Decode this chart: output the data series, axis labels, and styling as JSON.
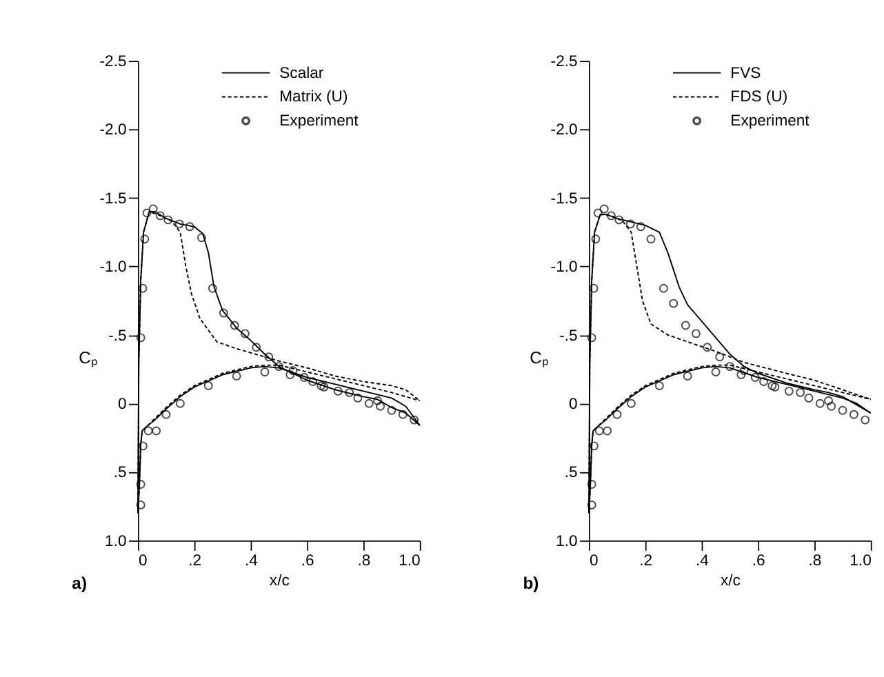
{
  "chart_data": [
    {
      "type": "line",
      "xlabel": "x/c",
      "ylabel": "Cₚ",
      "annotations": [
        "a)"
      ],
      "legend": "top right",
      "grid": false,
      "xlim": [
        0,
        1.0
      ],
      "xticks": [
        0,
        {
          "value": 0.2,
          "label": ".2"
        },
        {
          "value": 0.4,
          "label": ".4"
        },
        {
          "value": 0.6,
          "label": ".6"
        },
        {
          "value": 0.8,
          "label": ".8"
        },
        {
          "value": 1.0,
          "label": "1.0"
        }
      ],
      "ylim": [
        1.0,
        -2.5
      ],
      "yticks": [
        {
          "value": -2.5,
          "label": "-2.5"
        },
        {
          "value": -2.0,
          "label": "-2.0"
        },
        {
          "value": -1.5,
          "label": "-1.5"
        },
        {
          "value": -1.0,
          "label": "-1.0"
        },
        {
          "value": -0.5,
          "label": "-.5"
        },
        0,
        {
          "value": 0.5,
          "label": ".5"
        },
        {
          "value": 1.0,
          "label": "1.0"
        }
      ],
      "series": [
        {
          "name": "Scalar",
          "line_style": "solid",
          "color": "#000000",
          "x": [
            0,
            0.003,
            0.01,
            0.02,
            0.04,
            0.06,
            0.1,
            0.15,
            0.2,
            0.23,
            0.25,
            0.27,
            0.3,
            0.35,
            0.4,
            0.45,
            0.5,
            0.55,
            0.6,
            0.7,
            0.8,
            0.85,
            0.9,
            0.95,
            1.0
          ],
          "values": [
            0.8,
            -0.3,
            -0.9,
            -1.25,
            -1.4,
            -1.4,
            -1.35,
            -1.31,
            -1.29,
            -1.24,
            -1.1,
            -0.85,
            -0.68,
            -0.55,
            -0.46,
            -0.36,
            -0.27,
            -0.22,
            -0.17,
            -0.1,
            -0.05,
            -0.03,
            0.03,
            0.07,
            0.16
          ]
        },
        {
          "line_style": "solid",
          "color": "#000000",
          "x": [
            0,
            0.005,
            0.01,
            0.015,
            0.03,
            0.06,
            0.1,
            0.15,
            0.2,
            0.3,
            0.4,
            0.45,
            0.5,
            0.6,
            0.7,
            0.8,
            0.9,
            0.95,
            1.0
          ],
          "values": [
            0.8,
            0.6,
            0.3,
            0.2,
            0.17,
            0.12,
            0.04,
            -0.05,
            -0.12,
            -0.21,
            -0.26,
            -0.27,
            -0.26,
            -0.19,
            -0.14,
            -0.09,
            -0.04,
            0.02,
            0.16
          ]
        },
        {
          "name": "Matrix (U)",
          "line_style": "dashed",
          "color": "#000000",
          "x": [
            0,
            0.003,
            0.01,
            0.02,
            0.04,
            0.08,
            0.12,
            0.15,
            0.17,
            0.19,
            0.22,
            0.28,
            0.35,
            0.45,
            0.5,
            0.6,
            0.7,
            0.8,
            0.9,
            0.95,
            1.0
          ],
          "values": [
            0.8,
            -0.3,
            -0.9,
            -1.25,
            -1.4,
            -1.37,
            -1.33,
            -1.25,
            -1.0,
            -0.8,
            -0.62,
            -0.45,
            -0.4,
            -0.34,
            -0.31,
            -0.26,
            -0.2,
            -0.16,
            -0.13,
            -0.1,
            -0.02
          ]
        },
        {
          "line_style": "dashed",
          "color": "#000000",
          "x": [
            0,
            0.005,
            0.01,
            0.015,
            0.03,
            0.06,
            0.1,
            0.15,
            0.2,
            0.3,
            0.4,
            0.45,
            0.5,
            0.6,
            0.7,
            0.8,
            0.9,
            0.95,
            1.0
          ],
          "values": [
            0.8,
            0.6,
            0.3,
            0.2,
            0.17,
            0.11,
            0.03,
            -0.06,
            -0.13,
            -0.22,
            -0.27,
            -0.28,
            -0.28,
            -0.23,
            -0.18,
            -0.13,
            -0.08,
            -0.05,
            -0.02
          ]
        },
        {
          "name": "Experiment",
          "type": "scatter",
          "marker": "circle",
          "color": "#000000",
          "x": [
            0.01,
            0.01,
            0.018,
            0.037,
            0.065,
            0.1,
            0.15,
            0.25,
            0.35,
            0.45,
            0.01,
            0.017,
            0.024,
            0.032,
            0.054,
            0.079,
            0.107,
            0.147,
            0.184,
            0.226,
            0.265,
            0.304,
            0.343,
            0.38,
            0.42,
            0.464,
            0.5,
            0.54,
            0.55,
            0.59,
            0.62,
            0.65,
            0.66,
            0.71,
            0.75,
            0.78,
            0.82,
            0.85,
            0.86,
            0.9,
            0.94,
            0.98
          ],
          "values": [
            0.74,
            0.59,
            0.31,
            0.2,
            0.2,
            0.08,
            0.0,
            -0.13,
            -0.2,
            -0.23,
            -0.48,
            -0.84,
            -1.2,
            -1.39,
            -1.42,
            -1.37,
            -1.34,
            -1.31,
            -1.29,
            -1.21,
            -0.84,
            -0.66,
            -0.57,
            -0.51,
            -0.41,
            -0.34,
            -0.27,
            -0.21,
            -0.24,
            -0.19,
            -0.16,
            -0.13,
            -0.12,
            -0.09,
            -0.08,
            -0.04,
            0.0,
            -0.02,
            0.02,
            0.05,
            0.08,
            0.12
          ]
        }
      ]
    },
    {
      "type": "line",
      "xlabel": "x/c",
      "ylabel": "Cₚ",
      "annotations": [
        "b)"
      ],
      "legend": "top right",
      "grid": false,
      "xlim": [
        0,
        1.0
      ],
      "xticks": [
        0,
        {
          "value": 0.2,
          "label": ".2"
        },
        {
          "value": 0.4,
          "label": ".4"
        },
        {
          "value": 0.6,
          "label": ".6"
        },
        {
          "value": 0.8,
          "label": ".8"
        },
        {
          "value": 1.0,
          "label": "1.0"
        }
      ],
      "ylim": [
        1.0,
        -2.5
      ],
      "yticks": [
        {
          "value": -2.5,
          "label": "-2.5"
        },
        {
          "value": -2.0,
          "label": "-2.0"
        },
        {
          "value": -1.5,
          "label": "-1.5"
        },
        {
          "value": -1.0,
          "label": "-1.0"
        },
        {
          "value": -0.5,
          "label": "-.5"
        },
        0,
        {
          "value": 0.5,
          "label": ".5"
        },
        {
          "value": 1.0,
          "label": "1.0"
        }
      ],
      "series": [
        {
          "name": "FVS",
          "line_style": "solid",
          "color": "#000000",
          "x": [
            0,
            0.003,
            0.01,
            0.02,
            0.04,
            0.06,
            0.1,
            0.2,
            0.25,
            0.28,
            0.32,
            0.35,
            0.4,
            0.45,
            0.5,
            0.55,
            0.6,
            0.7,
            0.8,
            0.85,
            0.9,
            1.0
          ],
          "values": [
            0.8,
            -0.3,
            -0.9,
            -1.25,
            -1.38,
            -1.38,
            -1.35,
            -1.3,
            -1.25,
            -1.1,
            -0.85,
            -0.72,
            -0.6,
            -0.48,
            -0.36,
            -0.27,
            -0.22,
            -0.15,
            -0.1,
            -0.08,
            -0.05,
            0.07
          ]
        },
        {
          "line_style": "solid",
          "color": "#000000",
          "x": [
            0,
            0.005,
            0.01,
            0.015,
            0.03,
            0.06,
            0.1,
            0.15,
            0.2,
            0.3,
            0.4,
            0.45,
            0.5,
            0.6,
            0.7,
            0.8,
            0.9,
            0.95,
            1.0
          ],
          "values": [
            0.8,
            0.6,
            0.3,
            0.2,
            0.17,
            0.12,
            0.04,
            -0.05,
            -0.12,
            -0.21,
            -0.26,
            -0.27,
            -0.26,
            -0.19,
            -0.14,
            -0.09,
            -0.04,
            0.0,
            0.07
          ]
        },
        {
          "name": "FDS (U)",
          "line_style": "dashed",
          "color": "#000000",
          "x": [
            0,
            0.003,
            0.01,
            0.02,
            0.04,
            0.08,
            0.12,
            0.15,
            0.17,
            0.19,
            0.22,
            0.28,
            0.35,
            0.45,
            0.55,
            0.7,
            0.8,
            0.9,
            1.0
          ],
          "values": [
            0.8,
            -0.3,
            -0.9,
            -1.25,
            -1.38,
            -1.37,
            -1.33,
            -1.25,
            -1.0,
            -0.75,
            -0.58,
            -0.5,
            -0.45,
            -0.38,
            -0.3,
            -0.22,
            -0.17,
            -0.1,
            -0.03
          ]
        },
        {
          "line_style": "dashed",
          "color": "#000000",
          "x": [
            0,
            0.005,
            0.01,
            0.015,
            0.03,
            0.06,
            0.1,
            0.15,
            0.2,
            0.3,
            0.4,
            0.45,
            0.5,
            0.6,
            0.7,
            0.8,
            0.9,
            1.0
          ],
          "values": [
            0.8,
            0.6,
            0.3,
            0.2,
            0.17,
            0.11,
            0.03,
            -0.06,
            -0.13,
            -0.22,
            -0.27,
            -0.28,
            -0.28,
            -0.23,
            -0.18,
            -0.13,
            -0.08,
            -0.03
          ]
        },
        {
          "name": "Experiment",
          "type": "scatter",
          "marker": "circle",
          "color": "#000000",
          "x": [
            0.01,
            0.01,
            0.018,
            0.037,
            0.065,
            0.1,
            0.15,
            0.25,
            0.35,
            0.45,
            0.01,
            0.017,
            0.024,
            0.032,
            0.054,
            0.079,
            0.107,
            0.147,
            0.184,
            0.22,
            0.265,
            0.3,
            0.343,
            0.38,
            0.42,
            0.464,
            0.5,
            0.54,
            0.55,
            0.59,
            0.62,
            0.65,
            0.66,
            0.71,
            0.75,
            0.78,
            0.82,
            0.85,
            0.86,
            0.9,
            0.94,
            0.98
          ],
          "values": [
            0.74,
            0.59,
            0.31,
            0.2,
            0.2,
            0.08,
            0.0,
            -0.13,
            -0.2,
            -0.23,
            -0.48,
            -0.84,
            -1.2,
            -1.39,
            -1.42,
            -1.37,
            -1.34,
            -1.31,
            -1.29,
            -1.2,
            -0.84,
            -0.73,
            -0.57,
            -0.51,
            -0.41,
            -0.34,
            -0.27,
            -0.21,
            -0.24,
            -0.19,
            -0.16,
            -0.13,
            -0.12,
            -0.09,
            -0.08,
            -0.04,
            0.0,
            -0.02,
            0.02,
            0.05,
            0.08,
            0.12
          ]
        }
      ]
    }
  ]
}
